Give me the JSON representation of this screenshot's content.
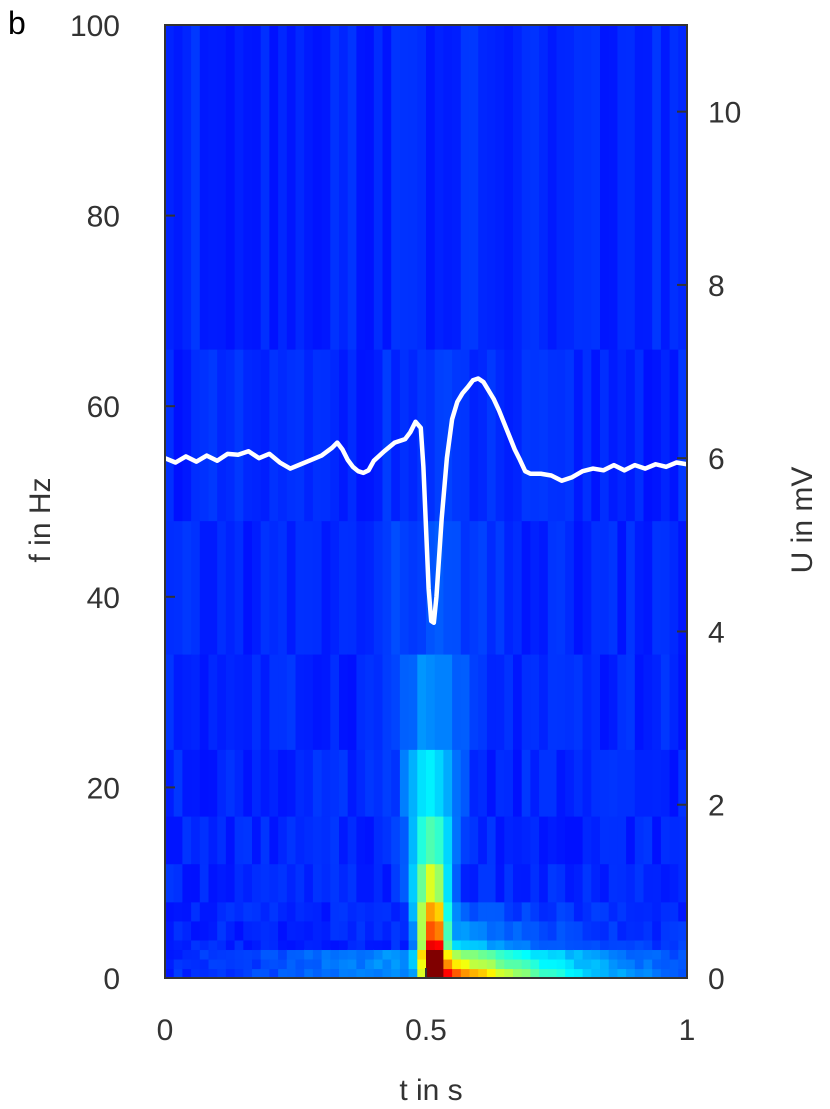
{
  "panel_label": "b",
  "chart_data": {
    "type": "heatmap",
    "title": "",
    "xlabel": "t in s",
    "ylabel_left": "f in Hz",
    "ylabel_right": "U in mV",
    "xlim": [
      0,
      1
    ],
    "ylim_left": [
      0,
      100
    ],
    "ylim_right": [
      0,
      11
    ],
    "x_ticks": [
      0,
      0.5,
      1
    ],
    "x_tick_labels": [
      "0",
      "0.5",
      "1"
    ],
    "y_left_ticks": [
      0,
      20,
      40,
      60,
      80,
      100
    ],
    "y_left_tick_labels": [
      "0",
      "20",
      "40",
      "60",
      "80",
      "100"
    ],
    "y_right_ticks": [
      0,
      2,
      4,
      6,
      8,
      10
    ],
    "y_right_tick_labels": [
      "0",
      "2",
      "4",
      "6",
      "8",
      "10"
    ],
    "colormap": "jet",
    "colors": {
      "background": "#1a1ad8",
      "signal_line": "#ffffff",
      "axis": "#333333"
    },
    "spectrogram": {
      "time_bins": 60,
      "frequency_band_edges_hz": [
        0,
        1,
        2,
        3,
        4,
        6,
        8,
        12,
        17,
        24,
        34,
        48,
        66,
        100
      ],
      "peak_time_s": 0.51,
      "note_values": "normalized magnitude 0-1"
    },
    "series": [
      {
        "axis": "right",
        "points": [
          [
            0,
            6.0
          ],
          [
            0.02,
            5.95
          ],
          [
            0.04,
            6.02
          ],
          [
            0.06,
            5.96
          ],
          [
            0.08,
            6.03
          ],
          [
            0.1,
            5.97
          ],
          [
            0.12,
            6.05
          ],
          [
            0.14,
            6.04
          ],
          [
            0.16,
            6.08
          ],
          [
            0.18,
            6.0
          ],
          [
            0.2,
            6.05
          ],
          [
            0.22,
            5.95
          ],
          [
            0.24,
            5.88
          ],
          [
            0.26,
            5.93
          ],
          [
            0.28,
            5.98
          ],
          [
            0.3,
            6.03
          ],
          [
            0.32,
            6.12
          ],
          [
            0.33,
            6.18
          ],
          [
            0.34,
            6.1
          ],
          [
            0.35,
            5.98
          ],
          [
            0.36,
            5.9
          ],
          [
            0.37,
            5.85
          ],
          [
            0.38,
            5.83
          ],
          [
            0.39,
            5.86
          ],
          [
            0.4,
            5.97
          ],
          [
            0.42,
            6.08
          ],
          [
            0.44,
            6.18
          ],
          [
            0.46,
            6.22
          ],
          [
            0.47,
            6.3
          ],
          [
            0.48,
            6.42
          ],
          [
            0.49,
            6.35
          ],
          [
            0.495,
            5.9
          ],
          [
            0.5,
            5.2
          ],
          [
            0.505,
            4.5
          ],
          [
            0.51,
            4.12
          ],
          [
            0.515,
            4.1
          ],
          [
            0.52,
            4.4
          ],
          [
            0.53,
            5.3
          ],
          [
            0.54,
            6.0
          ],
          [
            0.55,
            6.45
          ],
          [
            0.56,
            6.65
          ],
          [
            0.57,
            6.75
          ],
          [
            0.58,
            6.82
          ],
          [
            0.59,
            6.9
          ],
          [
            0.6,
            6.92
          ],
          [
            0.61,
            6.88
          ],
          [
            0.62,
            6.78
          ],
          [
            0.63,
            6.68
          ],
          [
            0.64,
            6.55
          ],
          [
            0.65,
            6.4
          ],
          [
            0.66,
            6.25
          ],
          [
            0.67,
            6.1
          ],
          [
            0.68,
            5.98
          ],
          [
            0.69,
            5.85
          ],
          [
            0.7,
            5.82
          ],
          [
            0.72,
            5.82
          ],
          [
            0.74,
            5.8
          ],
          [
            0.76,
            5.74
          ],
          [
            0.78,
            5.78
          ],
          [
            0.8,
            5.85
          ],
          [
            0.82,
            5.88
          ],
          [
            0.84,
            5.86
          ],
          [
            0.86,
            5.92
          ],
          [
            0.88,
            5.86
          ],
          [
            0.9,
            5.92
          ],
          [
            0.92,
            5.88
          ],
          [
            0.94,
            5.93
          ],
          [
            0.96,
            5.9
          ],
          [
            0.98,
            5.95
          ],
          [
            1.0,
            5.93
          ]
        ]
      }
    ]
  }
}
